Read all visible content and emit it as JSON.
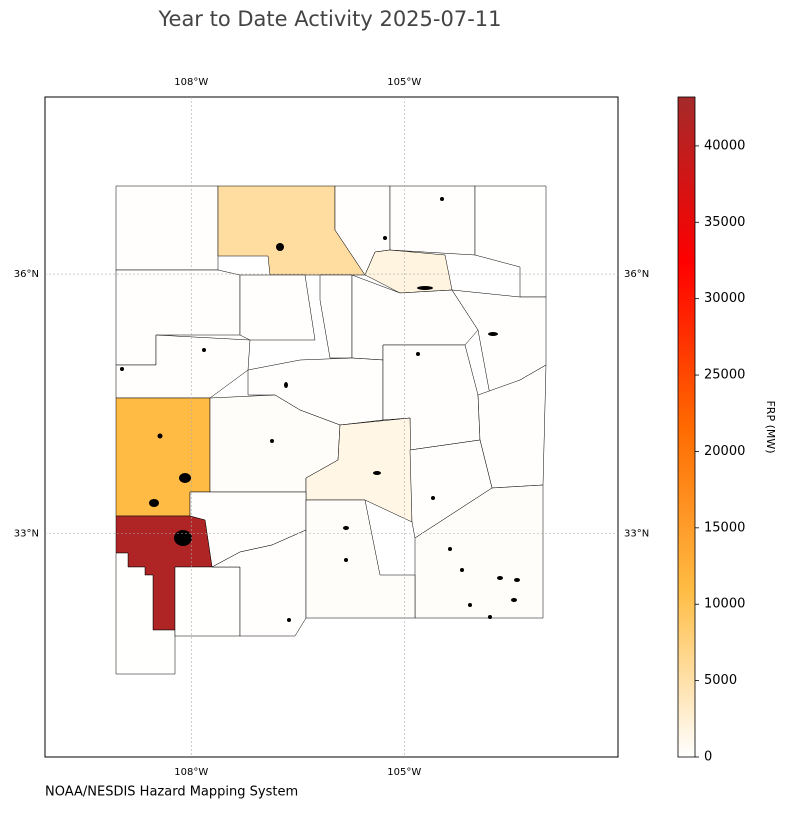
{
  "chart_data": {
    "type": "choropleth",
    "title": "Year to Date Activity 2025-07-11",
    "footer": "NOAA/NESDIS Hazard Mapping System",
    "xlim": [
      -110.06,
      -101.99
    ],
    "ylim": [
      30.41,
      38.05
    ],
    "xticks": [
      {
        "value": -108,
        "label": "108°W"
      },
      {
        "value": -105,
        "label": "105°W"
      }
    ],
    "yticks": [
      {
        "value": 36,
        "label": "36°N"
      },
      {
        "value": 33,
        "label": "33°N"
      }
    ],
    "grid": true,
    "values": [
      100,
      5500,
      200,
      100,
      50,
      1800,
      100,
      200,
      100,
      100,
      100,
      200,
      100,
      100,
      100,
      11000,
      300,
      1500,
      200,
      300,
      200,
      42000,
      50,
      50,
      100,
      300
    ],
    "colorbar": {
      "label": "FRP (MW)",
      "clim": [
        0,
        43200
      ],
      "ticks": [
        0,
        5000,
        10000,
        15000,
        20000,
        25000,
        30000,
        35000,
        40000
      ],
      "colormap": [
        "#ffffff",
        "#ffbd45",
        "#ff6a00",
        "#ff0000",
        "#a52a2a"
      ]
    }
  }
}
